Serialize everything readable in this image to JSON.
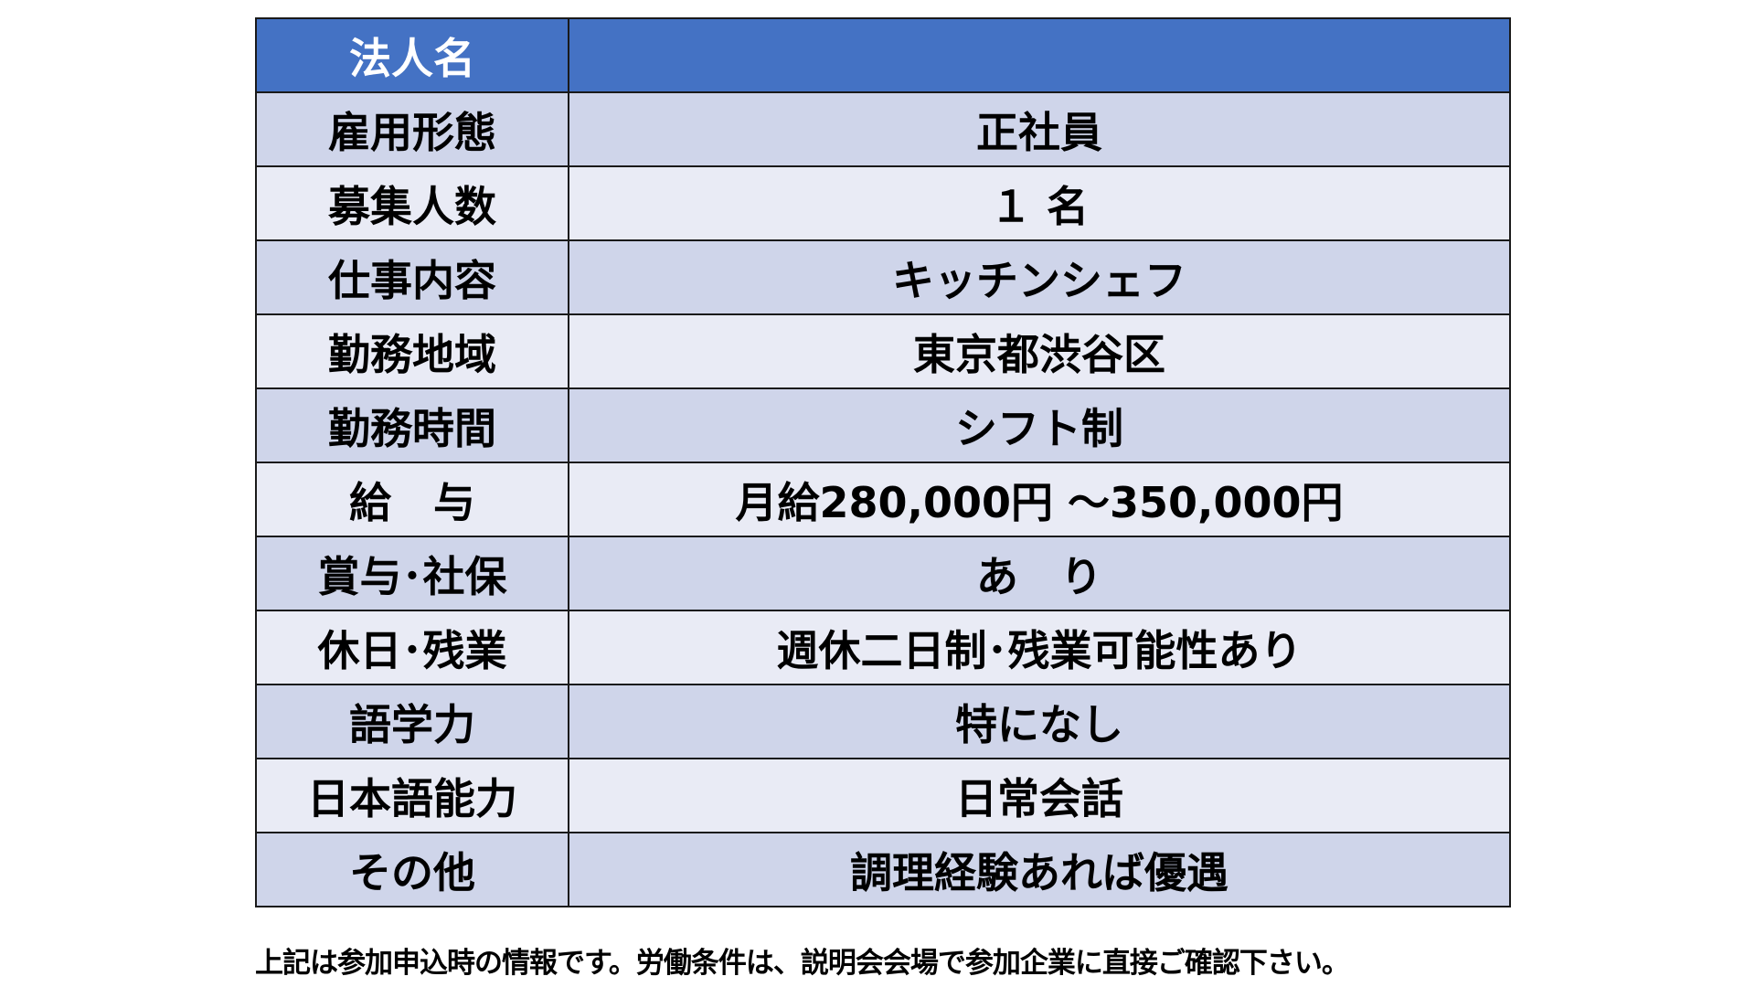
{
  "colors": {
    "header": "#4472C4",
    "row_odd": "#CFD5EA",
    "row_even": "#E9EBF5"
  },
  "header": {
    "label": "法人名",
    "value": ""
  },
  "rows": [
    {
      "label": "雇用形態",
      "value": "正社員"
    },
    {
      "label": "募集人数",
      "value": "１ 名"
    },
    {
      "label": "仕事内容",
      "value": "キッチンシェフ"
    },
    {
      "label": "勤務地域",
      "value": "東京都渋谷区"
    },
    {
      "label": "勤務時間",
      "value": "シフト制"
    },
    {
      "label": "給　与",
      "value": "月給280,000円 ～350,000円"
    },
    {
      "label": "賞与･社保",
      "value": "あ　り"
    },
    {
      "label": "休日･残業",
      "value": "週休二日制･残業可能性あり"
    },
    {
      "label": "語学力",
      "value": "特になし"
    },
    {
      "label": "日本語能力",
      "value": "日常会話"
    },
    {
      "label": "その他",
      "value": "調理経験あれば優遇"
    }
  ],
  "footnote": "上記は参加申込時の情報です。労働条件は、説明会会場で参加企業に直接ご確認下さい。"
}
